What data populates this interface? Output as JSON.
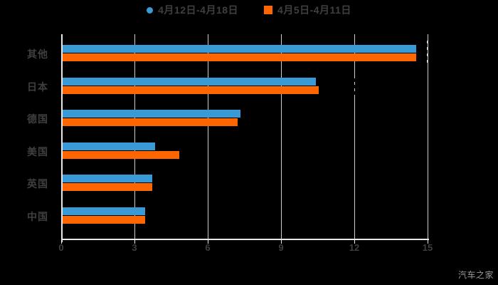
{
  "legend": {
    "items": [
      {
        "label": "4月12日-4月18日",
        "marker": "circle",
        "color": "#3A9AD5"
      },
      {
        "label": "4月5日-4月11日",
        "marker": "square",
        "color": "#FF6600"
      }
    ]
  },
  "watermark": {
    "text": "汽车之家"
  },
  "chart_data": {
    "type": "bar",
    "orientation": "horizontal",
    "title": "",
    "categories": [
      "其他",
      "日本",
      "德国",
      "美国",
      "英国",
      "中国"
    ],
    "series": [
      {
        "name": "4月12日-4月18日",
        "color": "#3A9AD5",
        "marker": "circle",
        "values": [
          14.5,
          10.4,
          7.3,
          3.8,
          3.7,
          3.4
        ]
      },
      {
        "name": "4月5日-4月11日",
        "color": "#FF6600",
        "marker": "square",
        "values": [
          14.5,
          10.5,
          7.2,
          4.8,
          3.7,
          3.4
        ]
      }
    ],
    "xlabel": "",
    "ylabel": "",
    "x_ticks": [
      0,
      3,
      6,
      9,
      12,
      15
    ],
    "xlim": [
      0,
      15
    ],
    "grid": true,
    "legend_position": "top",
    "background": "#000000",
    "text_color": "#3f3f3f",
    "axis_color": "#e8e8e8",
    "grid_color": "#cfcfcf"
  }
}
